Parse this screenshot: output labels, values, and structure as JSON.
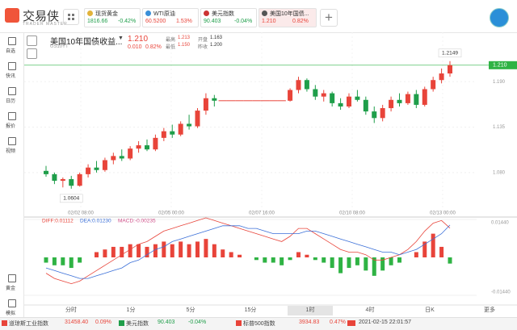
{
  "header": {
    "logo": "交易侠",
    "logo_sub": "TRADER MASTER"
  },
  "tickers": [
    {
      "name": "现货黄金",
      "price": "1816.66",
      "change": "-0.42%"
    },
    {
      "name": "WTI原油",
      "price": "60.5200",
      "change": "1.53%"
    },
    {
      "name": "美元指数",
      "price": "90.403",
      "change": "-0.04%"
    },
    {
      "name": "美国10年国债...",
      "price": "1.210",
      "change": "0.82%"
    }
  ],
  "sidebar": {
    "top": [
      "自选",
      "快讯",
      "日历",
      "报价",
      "视频"
    ],
    "bottom": [
      "黄金",
      "模拟"
    ]
  },
  "instrument": {
    "name": "美国10年国债收益...",
    "code": "US10YT",
    "price": "1.210",
    "change": "0.010",
    "change_pct": "0.82%",
    "stats": [
      {
        "label": "最高",
        "value": "1.213"
      },
      {
        "label": "开盘",
        "value": "1.163"
      },
      {
        "label": "最低",
        "value": "1.150"
      },
      {
        "label": "昨收",
        "value": "1.200"
      }
    ]
  },
  "chart_data": [
    {
      "type": "candlestick",
      "up_color": "#e8443a",
      "down_color": "#1f9e4a",
      "ylim": [
        1.03,
        1.245
      ],
      "yticks": [
        {
          "value": 1.19,
          "label": "1.190"
        },
        {
          "value": 1.135,
          "label": "1.135"
        },
        {
          "value": 1.08,
          "label": "1.080"
        }
      ],
      "last": {
        "value": 1.21,
        "label": "1.210"
      },
      "last_color": "#2fb344",
      "annotations": [
        1.2149,
        1.0604
      ],
      "xtick_labels": [
        "02/02 08:00",
        "02/05 00:00",
        "02/07 16:00",
        "02/10 08:00",
        "02/13 00:00"
      ],
      "ohlc": [
        [
          1.082,
          1.088,
          1.075,
          1.078
        ],
        [
          1.078,
          1.08,
          1.066,
          1.07
        ],
        [
          1.07,
          1.074,
          1.062,
          1.072
        ],
        [
          1.072,
          1.076,
          1.0604,
          1.064
        ],
        [
          1.064,
          1.08,
          1.063,
          1.078
        ],
        [
          1.078,
          1.09,
          1.074,
          1.086
        ],
        [
          1.086,
          1.094,
          1.08,
          1.083
        ],
        [
          1.083,
          1.098,
          1.081,
          1.095
        ],
        [
          1.095,
          1.104,
          1.09,
          1.1
        ],
        [
          1.1,
          1.108,
          1.094,
          1.097
        ],
        [
          1.097,
          1.112,
          1.095,
          1.109
        ],
        [
          1.109,
          1.118,
          1.104,
          1.113
        ],
        [
          1.113,
          1.12,
          1.106,
          1.108
        ],
        [
          1.108,
          1.126,
          1.106,
          1.122
        ],
        [
          1.122,
          1.134,
          1.118,
          1.13
        ],
        [
          1.13,
          1.138,
          1.122,
          1.126
        ],
        [
          1.126,
          1.142,
          1.124,
          1.139
        ],
        [
          1.139,
          1.15,
          1.132,
          1.136
        ],
        [
          1.136,
          1.158,
          1.134,
          1.155
        ],
        [
          1.155,
          1.176,
          1.15,
          1.17
        ],
        [
          1.17,
          1.174,
          1.16,
          1.167
        ],
        [
          1.167,
          1.167,
          1.167,
          1.167
        ],
        [
          1.167,
          1.167,
          1.167,
          1.167
        ],
        [
          1.167,
          1.167,
          1.167,
          1.167
        ],
        [
          1.167,
          1.167,
          1.167,
          1.167
        ],
        [
          1.167,
          1.167,
          1.167,
          1.167
        ],
        [
          1.167,
          1.167,
          1.167,
          1.167
        ],
        [
          1.167,
          1.167,
          1.167,
          1.167
        ],
        [
          1.167,
          1.167,
          1.167,
          1.167
        ],
        [
          1.167,
          1.182,
          1.166,
          1.18
        ],
        [
          1.18,
          1.196,
          1.176,
          1.192
        ],
        [
          1.192,
          1.194,
          1.178,
          1.181
        ],
        [
          1.181,
          1.186,
          1.168,
          1.172
        ],
        [
          1.172,
          1.18,
          1.166,
          1.176
        ],
        [
          1.176,
          1.178,
          1.16,
          1.164
        ],
        [
          1.164,
          1.17,
          1.156,
          1.16
        ],
        [
          1.16,
          1.176,
          1.158,
          1.172
        ],
        [
          1.172,
          1.18,
          1.166,
          1.168
        ],
        [
          1.168,
          1.172,
          1.15,
          1.154
        ],
        [
          1.154,
          1.16,
          1.14,
          1.146
        ],
        [
          1.146,
          1.162,
          1.142,
          1.158
        ],
        [
          1.158,
          1.172,
          1.154,
          1.168
        ],
        [
          1.168,
          1.176,
          1.16,
          1.164
        ],
        [
          1.164,
          1.178,
          1.162,
          1.175
        ],
        [
          1.175,
          1.18,
          1.158,
          1.162
        ],
        [
          1.162,
          1.184,
          1.16,
          1.181
        ],
        [
          1.181,
          1.196,
          1.178,
          1.192
        ],
        [
          1.192,
          1.206,
          1.188,
          1.2
        ],
        [
          1.2,
          1.2149,
          1.196,
          1.21
        ]
      ]
    },
    {
      "type": "macd",
      "ylim": [
        -0.0144,
        0.0144
      ],
      "yticks": [
        {
          "value": 0.0144,
          "label": "0.01440"
        },
        {
          "value": -0.0144,
          "label": "-0.01440"
        }
      ],
      "up_color": "#e8443a",
      "down_color": "#2fb344",
      "series": [
        {
          "name": "DIFF:0.01112",
          "color": "#e8443a",
          "values": [
            -0.006,
            -0.008,
            -0.009,
            -0.01,
            -0.009,
            -0.007,
            -0.005,
            -0.003,
            -0.001,
            0.001,
            0.003,
            0.005,
            0.006,
            0.008,
            0.01,
            0.011,
            0.012,
            0.013,
            0.014,
            0.015,
            0.014,
            0.013,
            0.012,
            0.011,
            0.01,
            0.009,
            0.008,
            0.007,
            0.006,
            0.008,
            0.011,
            0.011,
            0.009,
            0.007,
            0.005,
            0.003,
            0.002,
            0.002,
            0.001,
            -0.001,
            -0.001,
            0,
            0.001,
            0.003,
            0.006,
            0.01,
            0.013,
            0.014,
            0.01112
          ]
        },
        {
          "name": "DEA:0.01230",
          "color": "#3a6fd8",
          "values": [
            -0.004,
            -0.005,
            -0.006,
            -0.007,
            -0.008,
            -0.008,
            -0.007,
            -0.006,
            -0.005,
            -0.004,
            -0.002,
            -0.001,
            0.001,
            0.003,
            0.004,
            0.006,
            0.007,
            0.008,
            0.009,
            0.01,
            0.011,
            0.012,
            0.012,
            0.012,
            0.011,
            0.011,
            0.01,
            0.009,
            0.009,
            0.009,
            0.009,
            0.01,
            0.01,
            0.009,
            0.008,
            0.007,
            0.006,
            0.005,
            0.004,
            0.003,
            0.002,
            0.002,
            0.001,
            0.002,
            0.003,
            0.005,
            0.007,
            0.009,
            0.0123
          ]
        }
      ],
      "histogram": {
        "name": "MACD:-0.00235",
        "values": [
          -0.002,
          -0.003,
          -0.003,
          -0.004,
          -0.002,
          0,
          0.002,
          0.003,
          0.004,
          0.004,
          0.005,
          0.005,
          0.004,
          0.005,
          0.006,
          0.005,
          0.006,
          0.005,
          0.006,
          0.007,
          0.005,
          0.003,
          0.002,
          0.001,
          0,
          -0.001,
          -0.002,
          -0.002,
          -0.003,
          -0.001,
          0.002,
          0.001,
          -0.001,
          -0.002,
          -0.004,
          -0.006,
          -0.004,
          -0.003,
          -0.005,
          -0.007,
          -0.005,
          -0.003,
          -0.002,
          0,
          0.002,
          0.006,
          0.009,
          0.004,
          -0.00235
        ]
      }
    }
  ],
  "tabs": [
    "分时",
    "1分",
    "5分",
    "15分",
    "1时",
    "4时",
    "日K",
    "更多"
  ],
  "selected_tab": 4,
  "status": {
    "items": [
      {
        "name": "道琼斯工业指数",
        "price": "31458.40",
        "change": "0.09%"
      },
      {
        "name": "美元指数",
        "price": "90.403",
        "change": "-0.04%"
      },
      {
        "name": "标普500指数",
        "price": "3934.83",
        "change": "0.47%"
      }
    ],
    "datetime": "2021-02-15 22:01:57"
  }
}
